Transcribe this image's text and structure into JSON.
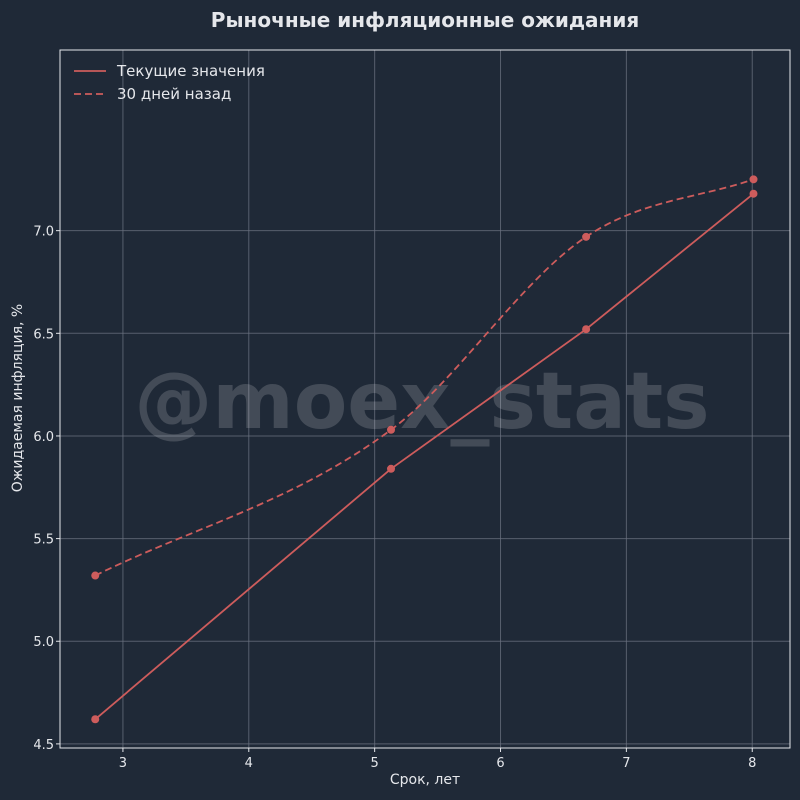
{
  "chart_data": {
    "type": "line",
    "title": "Рыночные инфляционные ожидания",
    "xlabel": "Срок, лет",
    "ylabel": "Ожидаемая инфляция, %",
    "xlim": [
      2.5,
      8.3
    ],
    "ylim": [
      4.48,
      7.88
    ],
    "xticks": [
      3,
      4,
      5,
      6,
      7,
      8
    ],
    "yticks": [
      4.5,
      5.0,
      5.5,
      6.0,
      6.5,
      7.0
    ],
    "grid": true,
    "legend_position": "top-left",
    "watermark": "@moex_stats",
    "series": [
      {
        "name": "Текущие значения",
        "style": "solid",
        "color": "#cd5c5c",
        "x": [
          2.78,
          5.13,
          6.68,
          8.01
        ],
        "y": [
          4.62,
          5.84,
          6.52,
          7.18
        ]
      },
      {
        "name": "30 дней назад",
        "style": "dashed",
        "color": "#cd5c5c",
        "x": [
          2.78,
          5.13,
          6.68,
          8.01
        ],
        "y": [
          5.32,
          6.03,
          6.97,
          7.25
        ]
      }
    ]
  }
}
